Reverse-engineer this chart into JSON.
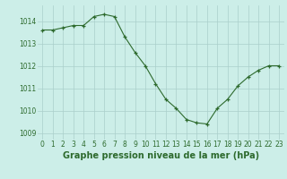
{
  "x": [
    0,
    1,
    2,
    3,
    4,
    5,
    6,
    7,
    8,
    9,
    10,
    11,
    12,
    13,
    14,
    15,
    16,
    17,
    18,
    19,
    20,
    21,
    22,
    23
  ],
  "y": [
    1013.6,
    1013.6,
    1013.7,
    1013.8,
    1013.8,
    1014.2,
    1014.3,
    1014.2,
    1013.3,
    1012.6,
    1012.0,
    1011.2,
    1010.5,
    1010.1,
    1009.6,
    1009.45,
    1009.4,
    1010.1,
    1010.5,
    1011.1,
    1011.5,
    1011.8,
    1012.0,
    1012.0
  ],
  "xlabel": "Graphe pression niveau de la mer (hPa)",
  "ylim": [
    1008.7,
    1014.7
  ],
  "xlim": [
    -0.5,
    23.5
  ],
  "yticks": [
    1009,
    1010,
    1011,
    1012,
    1013,
    1014
  ],
  "xticks": [
    0,
    1,
    2,
    3,
    4,
    5,
    6,
    7,
    8,
    9,
    10,
    11,
    12,
    13,
    14,
    15,
    16,
    17,
    18,
    19,
    20,
    21,
    22,
    23
  ],
  "line_color": "#2d6a2d",
  "marker_color": "#2d6a2d",
  "bg_color": "#cceee8",
  "grid_color": "#aacfcb",
  "xlabel_fontsize": 7,
  "tick_fontsize": 5.5,
  "tick_color": "#2d6a2d"
}
